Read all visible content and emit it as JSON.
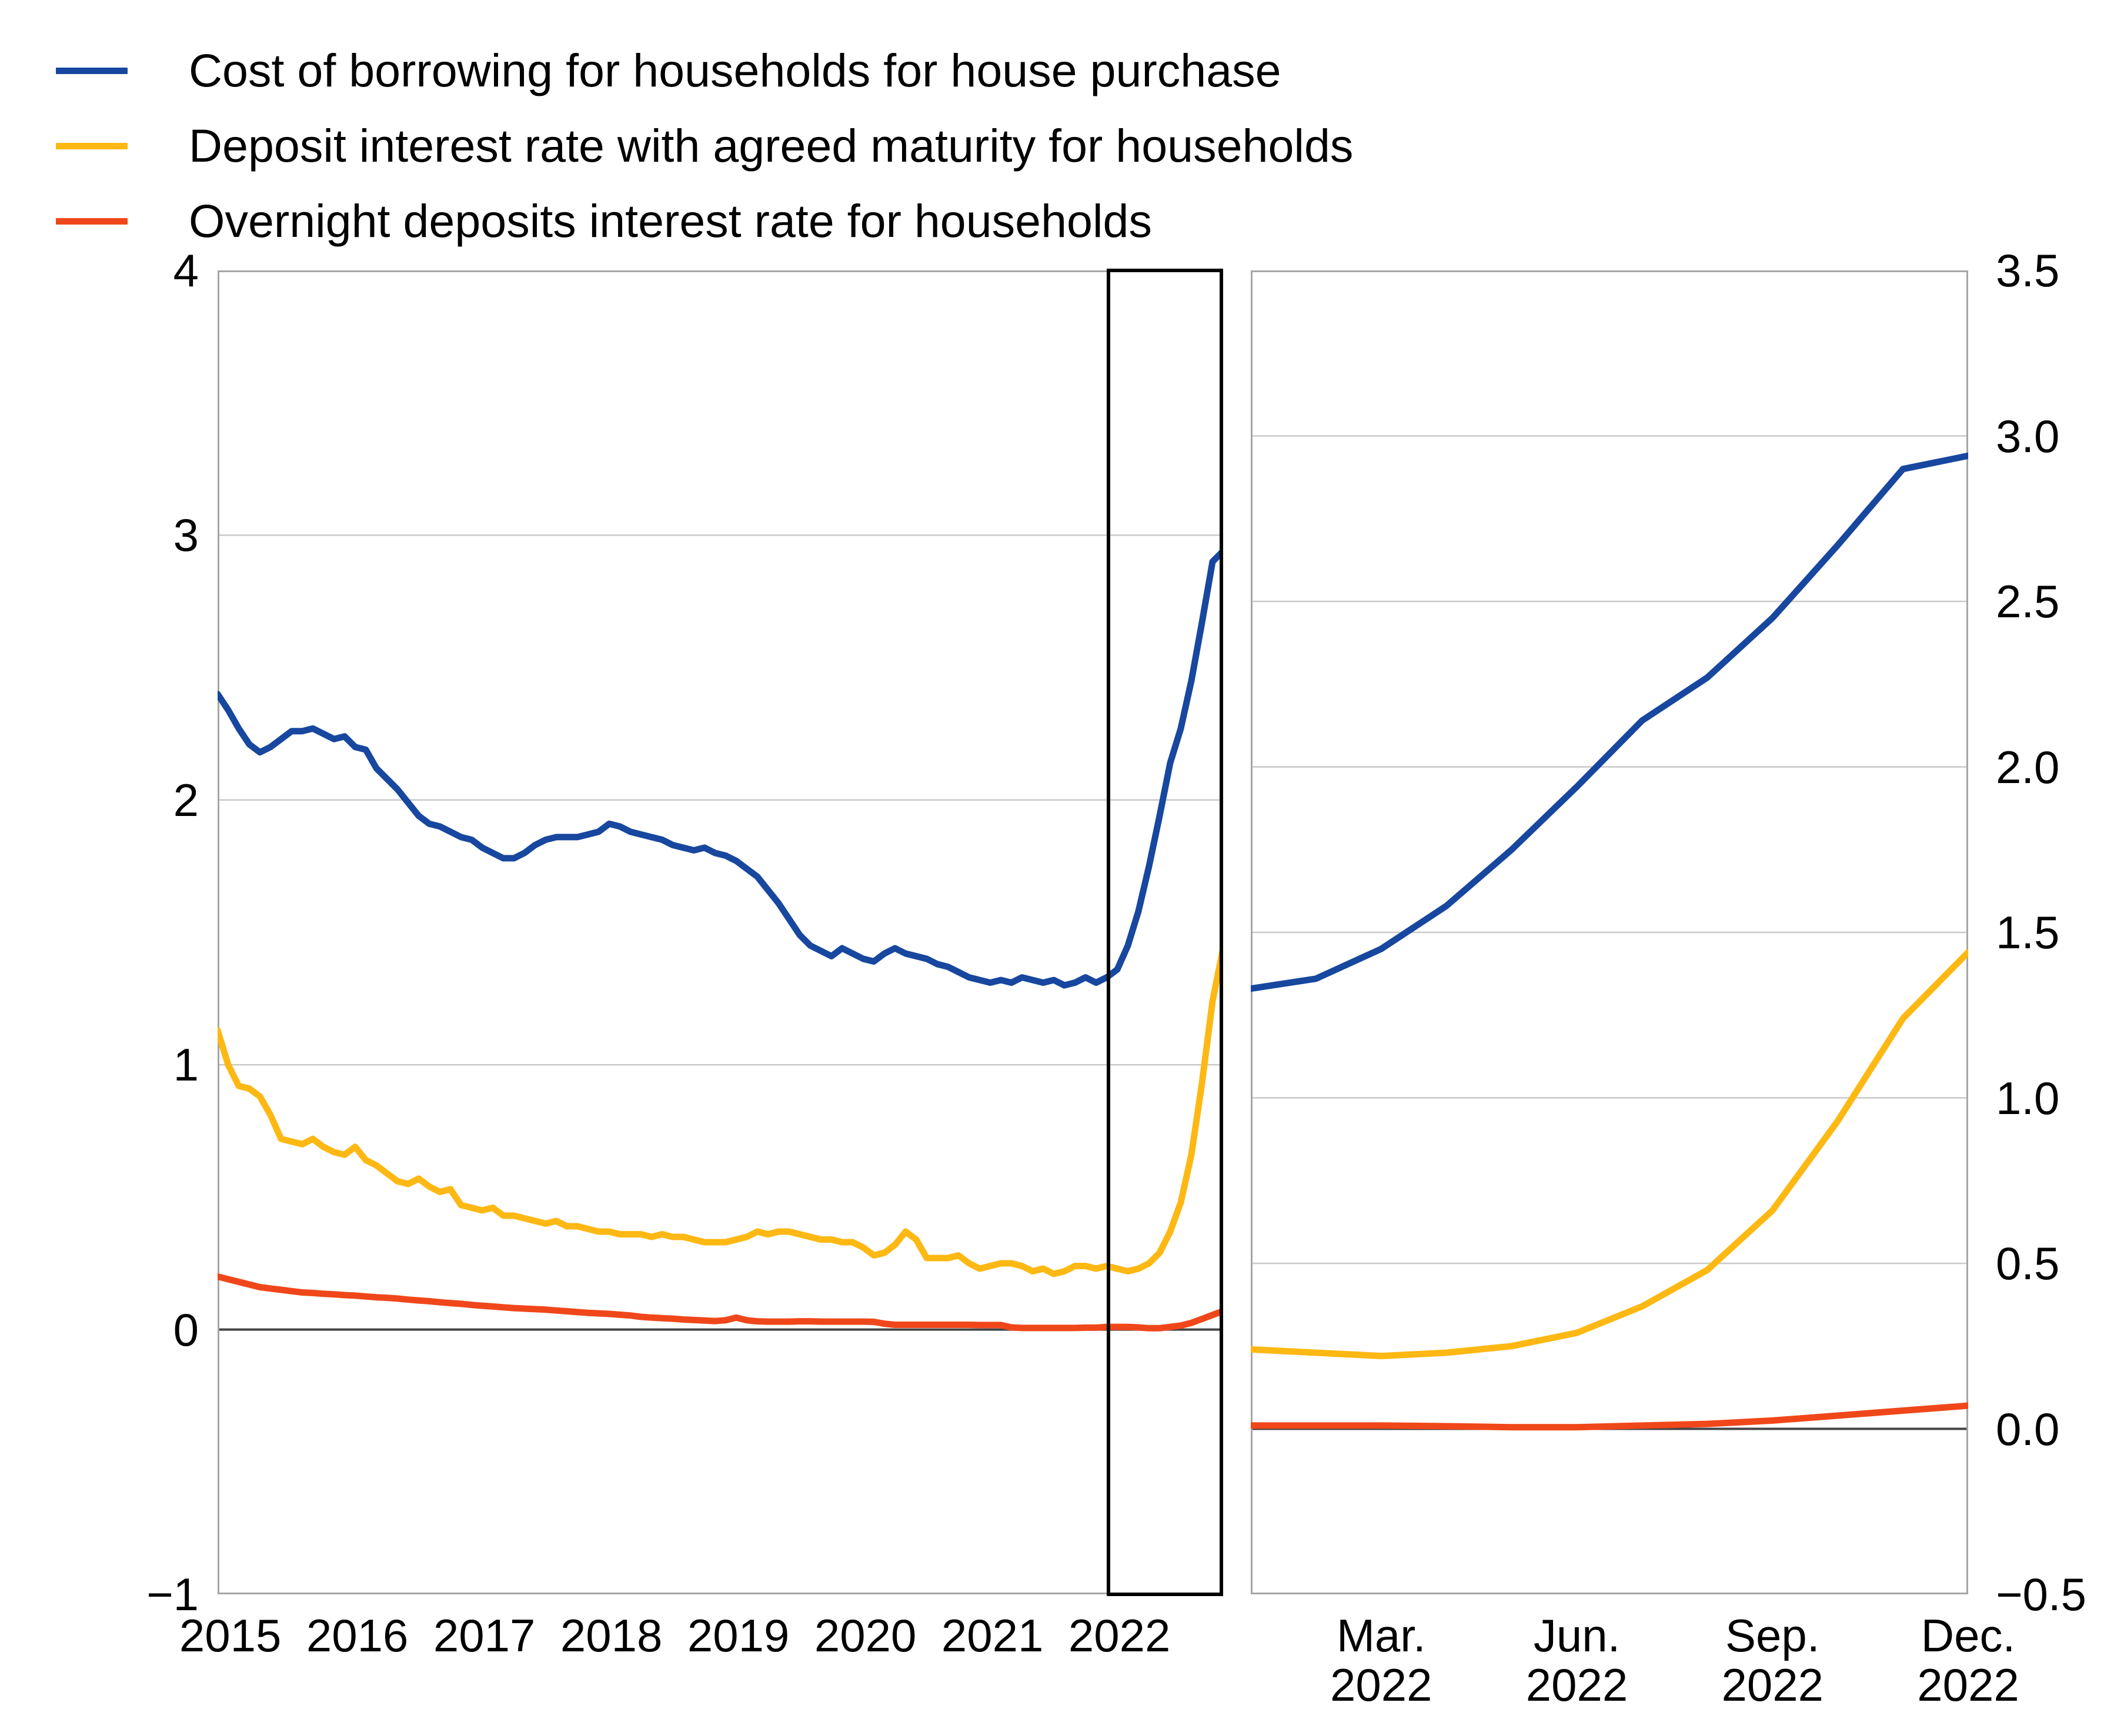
{
  "legend": {
    "items": [
      {
        "id": "cost-of-borrowing",
        "label": "Cost of borrowing for households for house purchase",
        "color": "#17479E"
      },
      {
        "id": "deposit-agreed-maturity",
        "label": "Deposit interest rate with agreed maturity for households",
        "color": "#FDB813"
      },
      {
        "id": "overnight-deposits",
        "label": "Overnight deposits interest rate for households",
        "color": "#F0471A"
      }
    ]
  },
  "style_colors": {
    "gridline": "#C9C9C9",
    "zero_line": "#454545",
    "panel_border": "#A6A6A6",
    "highlight_box": "#000000",
    "text": "#000000"
  },
  "chart_data": [
    {
      "type": "line",
      "title": "",
      "panel": "main-2015-2022",
      "xlabel": "",
      "ylabel": "",
      "ylim": [
        -1,
        4
      ],
      "grid": "horizontal, 1.0 steps",
      "yticks": [
        {
          "v": 4,
          "label": "4"
        },
        {
          "v": 3,
          "label": "3"
        },
        {
          "v": 2,
          "label": "2"
        },
        {
          "v": 1,
          "label": "1"
        },
        {
          "v": 0,
          "label": "0"
        },
        {
          "v": -1,
          "label": "−1"
        }
      ],
      "xticks": [
        {
          "m": 0,
          "label": "2015"
        },
        {
          "m": 12,
          "label": "2016"
        },
        {
          "m": 24,
          "label": "2017"
        },
        {
          "m": 36,
          "label": "2018"
        },
        {
          "m": 48,
          "label": "2019"
        },
        {
          "m": 60,
          "label": "2020"
        },
        {
          "m": 72,
          "label": "2021"
        },
        {
          "m": 84,
          "label": "2022"
        }
      ],
      "x_months": "monthly Jan 2015 - Dec 2022 (96 points)",
      "annotation": {
        "highlight_box": {
          "from": "Jan 2022",
          "to": "Dec 2022"
        }
      },
      "series": [
        {
          "name": "Cost of borrowing for households for house purchase",
          "color": "#17479E",
          "values": [
            2.4,
            2.34,
            2.27,
            2.21,
            2.18,
            2.2,
            2.23,
            2.26,
            2.26,
            2.27,
            2.25,
            2.23,
            2.24,
            2.2,
            2.19,
            2.12,
            2.08,
            2.04,
            1.99,
            1.94,
            1.91,
            1.9,
            1.88,
            1.86,
            1.85,
            1.82,
            1.8,
            1.78,
            1.78,
            1.8,
            1.83,
            1.85,
            1.86,
            1.86,
            1.86,
            1.87,
            1.88,
            1.91,
            1.9,
            1.88,
            1.87,
            1.86,
            1.85,
            1.83,
            1.82,
            1.81,
            1.82,
            1.8,
            1.79,
            1.77,
            1.74,
            1.71,
            1.66,
            1.61,
            1.55,
            1.49,
            1.45,
            1.43,
            1.41,
            1.44,
            1.42,
            1.4,
            1.39,
            1.42,
            1.44,
            1.42,
            1.41,
            1.4,
            1.38,
            1.37,
            1.35,
            1.33,
            1.32,
            1.31,
            1.32,
            1.31,
            1.33,
            1.32,
            1.31,
            1.32,
            1.3,
            1.31,
            1.33,
            1.31,
            1.33,
            1.36,
            1.45,
            1.58,
            1.75,
            1.94,
            2.14,
            2.27,
            2.45,
            2.67,
            2.9,
            2.94
          ]
        },
        {
          "name": "Deposit interest rate with agreed maturity for households",
          "color": "#FDB813",
          "values": [
            1.13,
            1.0,
            0.92,
            0.91,
            0.88,
            0.81,
            0.72,
            0.71,
            0.7,
            0.72,
            0.69,
            0.67,
            0.66,
            0.69,
            0.64,
            0.62,
            0.59,
            0.56,
            0.55,
            0.57,
            0.54,
            0.52,
            0.53,
            0.47,
            0.46,
            0.45,
            0.46,
            0.43,
            0.43,
            0.42,
            0.41,
            0.4,
            0.41,
            0.39,
            0.39,
            0.38,
            0.37,
            0.37,
            0.36,
            0.36,
            0.36,
            0.35,
            0.36,
            0.35,
            0.35,
            0.34,
            0.33,
            0.33,
            0.33,
            0.34,
            0.35,
            0.37,
            0.36,
            0.37,
            0.37,
            0.36,
            0.35,
            0.34,
            0.34,
            0.33,
            0.33,
            0.31,
            0.28,
            0.29,
            0.32,
            0.37,
            0.34,
            0.27,
            0.27,
            0.27,
            0.28,
            0.25,
            0.23,
            0.24,
            0.25,
            0.25,
            0.24,
            0.22,
            0.23,
            0.21,
            0.22,
            0.24,
            0.24,
            0.23,
            0.24,
            0.23,
            0.22,
            0.23,
            0.25,
            0.29,
            0.37,
            0.48,
            0.66,
            0.93,
            1.24,
            1.44
          ]
        },
        {
          "name": "Overnight deposits interest rate for households",
          "color": "#F0471A",
          "values": [
            0.2,
            0.19,
            0.18,
            0.17,
            0.16,
            0.155,
            0.15,
            0.145,
            0.14,
            0.138,
            0.135,
            0.133,
            0.13,
            0.128,
            0.125,
            0.122,
            0.12,
            0.117,
            0.113,
            0.11,
            0.107,
            0.103,
            0.1,
            0.097,
            0.093,
            0.09,
            0.087,
            0.084,
            0.081,
            0.079,
            0.077,
            0.075,
            0.072,
            0.069,
            0.066,
            0.063,
            0.061,
            0.059,
            0.056,
            0.053,
            0.048,
            0.045,
            0.043,
            0.041,
            0.038,
            0.036,
            0.034,
            0.032,
            0.035,
            0.045,
            0.035,
            0.031,
            0.03,
            0.03,
            0.03,
            0.031,
            0.031,
            0.03,
            0.03,
            0.03,
            0.03,
            0.03,
            0.029,
            0.022,
            0.018,
            0.018,
            0.018,
            0.018,
            0.018,
            0.018,
            0.018,
            0.018,
            0.017,
            0.017,
            0.017,
            0.008,
            0.006,
            0.006,
            0.006,
            0.006,
            0.006,
            0.006,
            0.007,
            0.007,
            0.01,
            0.01,
            0.01,
            0.008,
            0.005,
            0.005,
            0.01,
            0.015,
            0.025,
            0.04,
            0.055,
            0.07
          ]
        }
      ]
    },
    {
      "type": "line",
      "title": "",
      "panel": "zoom-2022",
      "xlabel": "",
      "ylabel": "",
      "ylim": [
        -0.5,
        3.5
      ],
      "grid": "horizontal, 0.5 steps",
      "yticks": [
        {
          "v": 3.5,
          "label": "3.5"
        },
        {
          "v": 3.0,
          "label": "3.0"
        },
        {
          "v": 2.5,
          "label": "2.5"
        },
        {
          "v": 2.0,
          "label": "2.0"
        },
        {
          "v": 1.5,
          "label": "1.5"
        },
        {
          "v": 1.0,
          "label": "1.0"
        },
        {
          "v": 0.5,
          "label": "0.5"
        },
        {
          "v": 0.0,
          "label": "0.0"
        },
        {
          "v": -0.5,
          "label": "−0.5"
        }
      ],
      "xticks": [
        {
          "m": 2,
          "label": "Mar.",
          "label2": "2022"
        },
        {
          "m": 5,
          "label": "Jun.",
          "label2": "2022"
        },
        {
          "m": 8,
          "label": "Sep.",
          "label2": "2022"
        },
        {
          "m": 11,
          "label": "Dec.",
          "label2": "2022"
        }
      ],
      "x_months": "monthly Jan 2022 - Dec 2022 (12 points)",
      "series": [
        {
          "name": "Cost of borrowing for households for house purchase",
          "color": "#17479E",
          "values": [
            1.33,
            1.36,
            1.45,
            1.58,
            1.75,
            1.94,
            2.14,
            2.27,
            2.45,
            2.67,
            2.9,
            2.94
          ]
        },
        {
          "name": "Deposit interest rate with agreed maturity for households",
          "color": "#FDB813",
          "values": [
            0.24,
            0.23,
            0.22,
            0.23,
            0.25,
            0.29,
            0.37,
            0.48,
            0.66,
            0.93,
            1.24,
            1.44
          ]
        },
        {
          "name": "Overnight deposits interest rate for households",
          "color": "#F0471A",
          "values": [
            0.01,
            0.01,
            0.01,
            0.008,
            0.005,
            0.005,
            0.01,
            0.015,
            0.025,
            0.04,
            0.055,
            0.07
          ]
        }
      ]
    }
  ]
}
